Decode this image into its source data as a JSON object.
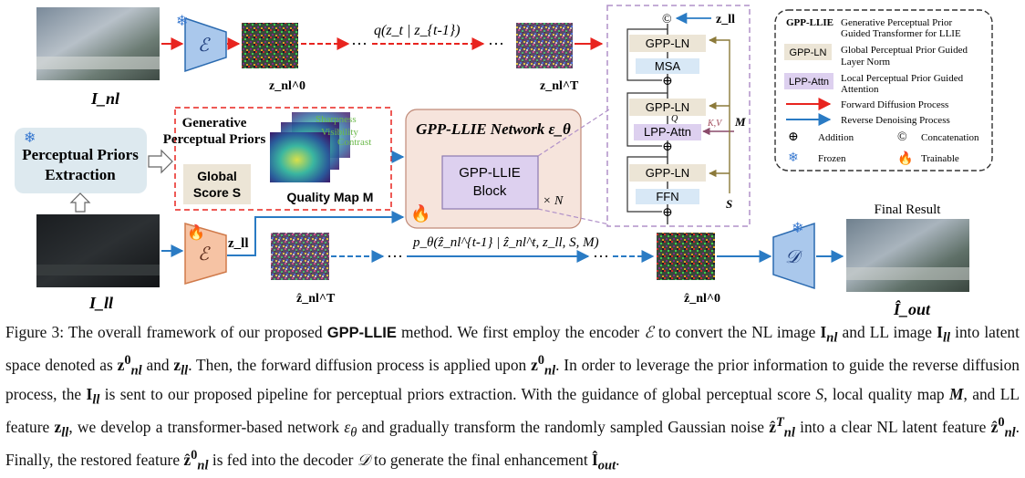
{
  "diagram": {
    "top_q_label": "q(z_t | z_{t-1})",
    "bottom_p_label": "p_θ(ẑ_nl^{t-1} | ẑ_nl^t, z_ll, S, M)",
    "img_nl_label": "I_nl",
    "img_ll_label": "I_ll",
    "z_nl0_label": "z_nl^0",
    "z_nlT_label": "z_nl^T",
    "zhat_T_label": "ẑ_nl^T",
    "zhat_0_label": "ẑ_nl^0",
    "zll_label": "z_ll",
    "encoder_symbol": "ℰ",
    "decoder_symbol": "𝒟",
    "dots": "···",
    "perceptual_title_line1": "Perceptual Priors",
    "perceptual_title_line2": "Extraction",
    "gen_priors_line1": "Generative",
    "gen_priors_line2": "Perceptual Priors",
    "global_score_line1": "Global",
    "global_score_line2": "Score S",
    "quality_map_label": "Quality Map M",
    "qm_words": [
      "Sharpness",
      "Visibility",
      "Contrast"
    ],
    "network_title": "GPP-LLIE Network ε_θ",
    "block_line1": "GPP-LLIE",
    "block_line2": "Block",
    "times_n": "× N",
    "final_result": "Final Result",
    "i_out_label": "Î_out",
    "block_detail": {
      "zll": "z_ll",
      "concat": "©",
      "gppln1": "GPP-LN",
      "msa": "MSA",
      "gppln2": "GPP-LN",
      "q": "Q",
      "kv": "K,V",
      "lpp": "LPP-Attn",
      "m": "M",
      "gppln3": "GPP-LN",
      "ffn": "FFN",
      "s": "S"
    },
    "legend": {
      "gpp_llie_name": "GPP-LLIE",
      "gpp_llie_desc_1": "Generative Perceptual Prior",
      "gpp_llie_desc_2": "Guided Transformer for LLIE",
      "gppln_name": "GPP-LN",
      "gppln_desc_1": "Global Perceptual Prior Guided",
      "gppln_desc_2": "Layer Norm",
      "lpp_name": "LPP-Attn",
      "lpp_desc_1": "Local Perceptual Prior Guided",
      "lpp_desc_2": "Attention",
      "forward": "Forward Diffusion Process",
      "reverse": "Reverse Denoising Process",
      "addition": "Addition",
      "concatenation": "Concatenation",
      "frozen": "Frozen",
      "trainable": "Trainable"
    },
    "colors": {
      "red_arrow": "#e8241f",
      "blue_arrow": "#2a7bc4",
      "encoder_blue": "#aac8ec",
      "encoder_orange": "#f6c3a4",
      "network_bg": "#f6e4dc",
      "block_purple": "#ddd0ef",
      "ln_beige": "#ece5d6",
      "msa_blue": "#d8e8f6",
      "perceptual_bg": "#dde9ef"
    }
  },
  "caption": {
    "fig_prefix": "Figure 3: The overall framework of our proposed",
    "method": "GPP-LLIE",
    "t1": "method. We first employ the encoder",
    "t2": "to convert the NL image",
    "t3": "and LL image",
    "t4": "into latent space denoted as",
    "t5": "and",
    "t6": ". Then, the forward diffusion process is applied upon",
    "t7": ". In order to leverage the prior information to guide the reverse diffusion process, the",
    "t8": "is sent to our proposed pipeline for perceptual priors extraction. With the guidance of global perceptual score",
    "t9": ", local quality map",
    "t10": ", and LL feature",
    "t11": ", we develop a transformer-based network",
    "t12": "and gradually transform the randomly sampled Gaussian noise",
    "t13": "into a clear NL latent feature",
    "t14": ". Finally, the restored feature",
    "t15": "is fed into the decoder",
    "t16": "to generate the final enhancement",
    "t17": "."
  }
}
